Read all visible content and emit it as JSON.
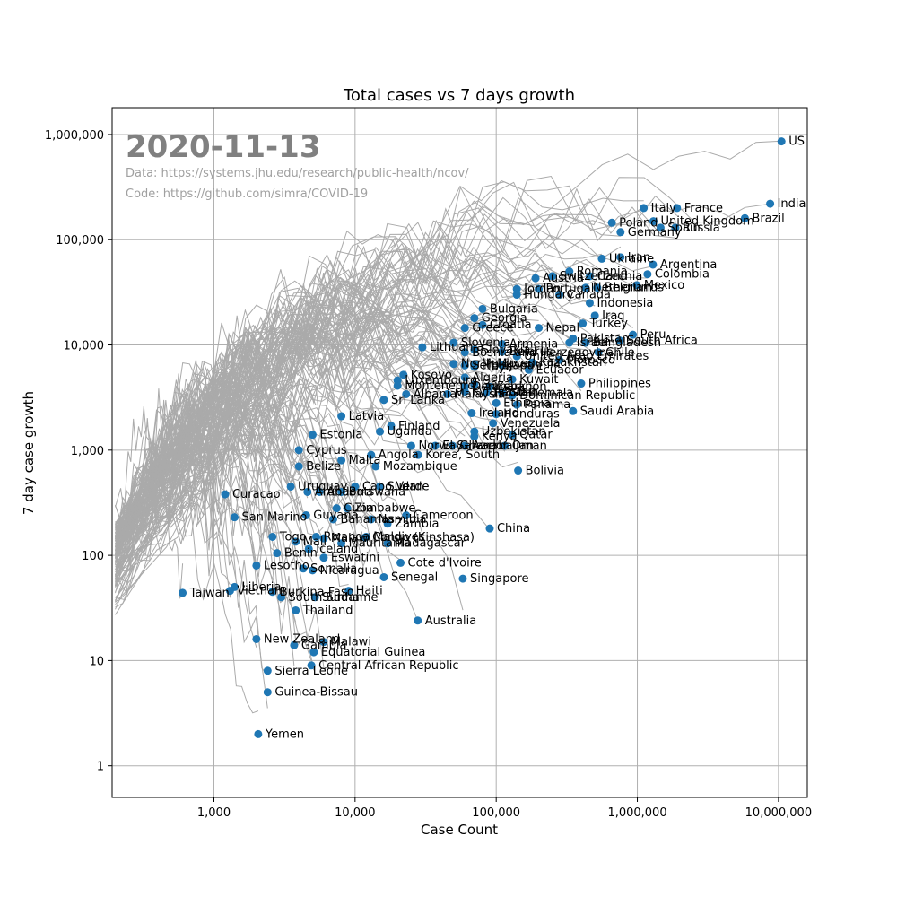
{
  "chart_data": {
    "type": "scatter",
    "title": "Total cases vs 7 days growth",
    "xlabel": "Case Count",
    "ylabel": "7 day case growth",
    "xscale": "log",
    "yscale": "log",
    "xlim": [
      190,
      16000000
    ],
    "ylim": [
      0.5,
      1800000
    ],
    "grid": true,
    "date": "2020-11-13",
    "source_data": "Data: https://systems.jhu.edu/research/public-health/ncov/",
    "source_code": "Code: https://github.com/simra/COVID-19",
    "point_color": "#1f77b4",
    "trail_color": "#aaaaaa",
    "x_ticks": [
      {
        "value": 1000,
        "label": "1,000"
      },
      {
        "value": 10000,
        "label": "10,000"
      },
      {
        "value": 100000,
        "label": "100,000"
      },
      {
        "value": 1000000,
        "label": "1,000,000"
      },
      {
        "value": 10000000,
        "label": "10,000,000"
      }
    ],
    "y_ticks": [
      {
        "value": 1,
        "label": "1"
      },
      {
        "value": 10,
        "label": "10"
      },
      {
        "value": 100,
        "label": "100"
      },
      {
        "value": 1000,
        "label": "1,000"
      },
      {
        "value": 10000,
        "label": "10,000"
      },
      {
        "value": 100000,
        "label": "100,000"
      },
      {
        "value": 1000000,
        "label": "1,000,000"
      }
    ],
    "points": [
      {
        "label": "US",
        "x": 10500000,
        "y": 860000
      },
      {
        "label": "India",
        "x": 8730000,
        "y": 220000
      },
      {
        "label": "Brazil",
        "x": 5780000,
        "y": 160000
      },
      {
        "label": "France",
        "x": 1910000,
        "y": 200000
      },
      {
        "label": "Italy",
        "x": 1110000,
        "y": 200000
      },
      {
        "label": "Russia",
        "x": 1860000,
        "y": 130000
      },
      {
        "label": "Spain",
        "x": 1460000,
        "y": 130000
      },
      {
        "label": "United Kingdom",
        "x": 1300000,
        "y": 150000
      },
      {
        "label": "Poland",
        "x": 660000,
        "y": 145000
      },
      {
        "label": "Germany",
        "x": 760000,
        "y": 118000
      },
      {
        "label": "Argentina",
        "x": 1290000,
        "y": 58000
      },
      {
        "label": "Iran",
        "x": 760000,
        "y": 68000
      },
      {
        "label": "Ukraine",
        "x": 560000,
        "y": 66000
      },
      {
        "label": "Colombia",
        "x": 1180000,
        "y": 47000
      },
      {
        "label": "Romania",
        "x": 330000,
        "y": 50000
      },
      {
        "label": "Czechia",
        "x": 460000,
        "y": 45000
      },
      {
        "label": "Switzerland",
        "x": 250000,
        "y": 45000
      },
      {
        "label": "Austria",
        "x": 190000,
        "y": 43000
      },
      {
        "label": "Mexico",
        "x": 990000,
        "y": 37000
      },
      {
        "label": "Belgium",
        "x": 520000,
        "y": 35000
      },
      {
        "label": "Netherlands",
        "x": 430000,
        "y": 35000
      },
      {
        "label": "Portugal",
        "x": 200000,
        "y": 34000
      },
      {
        "label": "Jordan",
        "x": 140000,
        "y": 34000
      },
      {
        "label": "Hungary",
        "x": 140000,
        "y": 30000
      },
      {
        "label": "Canada",
        "x": 280000,
        "y": 30000
      },
      {
        "label": "Indonesia",
        "x": 460000,
        "y": 25000
      },
      {
        "label": "Bulgaria",
        "x": 80000,
        "y": 22000
      },
      {
        "label": "Iraq",
        "x": 500000,
        "y": 19000
      },
      {
        "label": "Turkey",
        "x": 410000,
        "y": 16000
      },
      {
        "label": "Georgia",
        "x": 70000,
        "y": 18000
      },
      {
        "label": "Nepal",
        "x": 200000,
        "y": 14500
      },
      {
        "label": "Croatia",
        "x": 80000,
        "y": 15500
      },
      {
        "label": "Greece",
        "x": 60000,
        "y": 14500
      },
      {
        "label": "Peru",
        "x": 930000,
        "y": 12500
      },
      {
        "label": "Pakistan",
        "x": 350000,
        "y": 11500
      },
      {
        "label": "Bangladesh",
        "x": 430000,
        "y": 10500
      },
      {
        "label": "South Africa",
        "x": 750000,
        "y": 11000
      },
      {
        "label": "Israel",
        "x": 330000,
        "y": 10500
      },
      {
        "label": "Slovenia",
        "x": 50000,
        "y": 10500
      },
      {
        "label": "Armenia",
        "x": 110000,
        "y": 10200
      },
      {
        "label": "Lithuania",
        "x": 30000,
        "y": 9500
      },
      {
        "label": "Slovakia",
        "x": 70000,
        "y": 9000
      },
      {
        "label": "Belarus",
        "x": 110000,
        "y": 8600
      },
      {
        "label": "Bosnia and Herzegovina",
        "x": 60000,
        "y": 8500
      },
      {
        "label": "Chile",
        "x": 530000,
        "y": 8500
      },
      {
        "label": "United Arab Emirates",
        "x": 140000,
        "y": 7800
      },
      {
        "label": "Morocco",
        "x": 280000,
        "y": 7200
      },
      {
        "label": "Kazakhstan",
        "x": 180000,
        "y": 6800
      },
      {
        "label": "Moldova",
        "x": 70000,
        "y": 6600
      },
      {
        "label": "North Macedonia",
        "x": 50000,
        "y": 6600
      },
      {
        "label": "Japan",
        "x": 110000,
        "y": 6400
      },
      {
        "label": "Serbia",
        "x": 60000,
        "y": 6400
      },
      {
        "label": "Libya",
        "x": 70000,
        "y": 6200
      },
      {
        "label": "Ecuador",
        "x": 170000,
        "y": 5800
      },
      {
        "label": "Kosovo",
        "x": 22000,
        "y": 5200
      },
      {
        "label": "Algeria",
        "x": 60000,
        "y": 4900
      },
      {
        "label": "Kuwait",
        "x": 130000,
        "y": 4700
      },
      {
        "label": "Luxembourg",
        "x": 20000,
        "y": 4600
      },
      {
        "label": "Philippines",
        "x": 400000,
        "y": 4300
      },
      {
        "label": "Gaza",
        "x": 70000,
        "y": 4200
      },
      {
        "label": "Montenegro",
        "x": 20000,
        "y": 4100
      },
      {
        "label": "Denmark",
        "x": 60000,
        "y": 4000
      },
      {
        "label": "Lebanon",
        "x": 90000,
        "y": 4000
      },
      {
        "label": "Kyrgyzstan",
        "x": 60000,
        "y": 3600
      },
      {
        "label": "Guatemala",
        "x": 110000,
        "y": 3500
      },
      {
        "label": "Bahrain",
        "x": 85000,
        "y": 3500
      },
      {
        "label": "Dominican Republic",
        "x": 130000,
        "y": 3300
      },
      {
        "label": "Albania",
        "x": 23000,
        "y": 3400
      },
      {
        "label": "Malaysia",
        "x": 45000,
        "y": 3400
      },
      {
        "label": "Sri Lanka",
        "x": 16000,
        "y": 3000
      },
      {
        "label": "Ethiopia",
        "x": 100000,
        "y": 2800
      },
      {
        "label": "Panama",
        "x": 140000,
        "y": 2700
      },
      {
        "label": "Saudi Arabia",
        "x": 350000,
        "y": 2350
      },
      {
        "label": "Ireland",
        "x": 67000,
        "y": 2250
      },
      {
        "label": "Honduras",
        "x": 100000,
        "y": 2200
      },
      {
        "label": "Latvia",
        "x": 8000,
        "y": 2100
      },
      {
        "label": "Venezuela",
        "x": 95000,
        "y": 1800
      },
      {
        "label": "Finland",
        "x": 18000,
        "y": 1700
      },
      {
        "label": "Uganda",
        "x": 15000,
        "y": 1500
      },
      {
        "label": "Uzbekistan",
        "x": 70000,
        "y": 1500
      },
      {
        "label": "Qatar",
        "x": 130000,
        "y": 1400
      },
      {
        "label": "Estonia",
        "x": 5000,
        "y": 1400
      },
      {
        "label": "Kenya",
        "x": 70000,
        "y": 1350
      },
      {
        "label": "El Salvador",
        "x": 37000,
        "y": 1100
      },
      {
        "label": "Ghana",
        "x": 49000,
        "y": 1100
      },
      {
        "label": "Azerbaijan",
        "x": 60000,
        "y": 1100
      },
      {
        "label": "Norway",
        "x": 25000,
        "y": 1100
      },
      {
        "label": "Oman",
        "x": 115000,
        "y": 1100
      },
      {
        "label": "Cyprus",
        "x": 4000,
        "y": 1000
      },
      {
        "label": "Angola",
        "x": 13000,
        "y": 900
      },
      {
        "label": "Korea, South",
        "x": 28000,
        "y": 900
      },
      {
        "label": "Malta",
        "x": 8000,
        "y": 800
      },
      {
        "label": "Belize",
        "x": 4000,
        "y": 700
      },
      {
        "label": "Bolivia",
        "x": 143000,
        "y": 640
      },
      {
        "label": "Mozambique",
        "x": 14000,
        "y": 700
      },
      {
        "label": "Uruguay",
        "x": 3500,
        "y": 450
      },
      {
        "label": "Cabo Verde",
        "x": 10000,
        "y": 450
      },
      {
        "label": "Sudan",
        "x": 15000,
        "y": 450
      },
      {
        "label": "Andorra",
        "x": 5600,
        "y": 400
      },
      {
        "label": "Aruba",
        "x": 4600,
        "y": 400
      },
      {
        "label": "Botswana",
        "x": 8000,
        "y": 400
      },
      {
        "label": "Curacao",
        "x": 1200,
        "y": 380
      },
      {
        "label": "Zimbabwe",
        "x": 8800,
        "y": 280
      },
      {
        "label": "Cuba",
        "x": 7400,
        "y": 280
      },
      {
        "label": "Guyana",
        "x": 4500,
        "y": 240
      },
      {
        "label": "Cameroon",
        "x": 23000,
        "y": 240
      },
      {
        "label": "San Marino",
        "x": 1400,
        "y": 230
      },
      {
        "label": "Bahamas",
        "x": 7000,
        "y": 220
      },
      {
        "label": "Namibia",
        "x": 13000,
        "y": 220
      },
      {
        "label": "Zambia",
        "x": 17000,
        "y": 200
      },
      {
        "label": "China",
        "x": 90000,
        "y": 180
      },
      {
        "label": "Togo",
        "x": 2600,
        "y": 150
      },
      {
        "label": "Rwanda",
        "x": 5300,
        "y": 150
      },
      {
        "label": "Maldives",
        "x": 12000,
        "y": 150
      },
      {
        "label": "Congo (Kinshasa)",
        "x": 11800,
        "y": 148
      },
      {
        "label": "Malawi",
        "x": 6000,
        "y": 145
      },
      {
        "label": "Mali",
        "x": 3800,
        "y": 135
      },
      {
        "label": "Madagascar",
        "x": 17000,
        "y": 130
      },
      {
        "label": "Mauritania",
        "x": 8000,
        "y": 130
      },
      {
        "label": "Iceland",
        "x": 4700,
        "y": 115
      },
      {
        "label": "Benin",
        "x": 2800,
        "y": 105
      },
      {
        "label": "Eswatini",
        "x": 6000,
        "y": 95
      },
      {
        "label": "Cote d'Ivoire",
        "x": 21000,
        "y": 85
      },
      {
        "label": "Lesotho",
        "x": 2000,
        "y": 80
      },
      {
        "label": "Somalia",
        "x": 4300,
        "y": 75
      },
      {
        "label": "Nicaragua",
        "x": 5000,
        "y": 72
      },
      {
        "label": "Senegal",
        "x": 16000,
        "y": 62
      },
      {
        "label": "Singapore",
        "x": 58000,
        "y": 60
      },
      {
        "label": "Liberia",
        "x": 1400,
        "y": 50
      },
      {
        "label": "Vietnam",
        "x": 1300,
        "y": 46
      },
      {
        "label": "Haiti",
        "x": 9000,
        "y": 46
      },
      {
        "label": "Burkina Faso",
        "x": 2600,
        "y": 45
      },
      {
        "label": "Taiwan",
        "x": 600,
        "y": 44
      },
      {
        "label": "South Sudan",
        "x": 3000,
        "y": 40
      },
      {
        "label": "Suriname",
        "x": 5200,
        "y": 40
      },
      {
        "label": "Thailand",
        "x": 3800,
        "y": 30
      },
      {
        "label": "Australia",
        "x": 27800,
        "y": 24
      },
      {
        "label": "New Zealand",
        "x": 2000,
        "y": 16
      },
      {
        "label": "Malawi",
        "x": 6000,
        "y": 15
      },
      {
        "label": "Gambia",
        "x": 3700,
        "y": 14
      },
      {
        "label": "Equatorial Guinea",
        "x": 5100,
        "y": 12
      },
      {
        "label": "Central African Republic",
        "x": 4900,
        "y": 9
      },
      {
        "label": "Sierra Leone",
        "x": 2400,
        "y": 8
      },
      {
        "label": "Guinea-Bissau",
        "x": 2400,
        "y": 5
      },
      {
        "label": "Yemen",
        "x": 2060,
        "y": 2
      }
    ]
  }
}
